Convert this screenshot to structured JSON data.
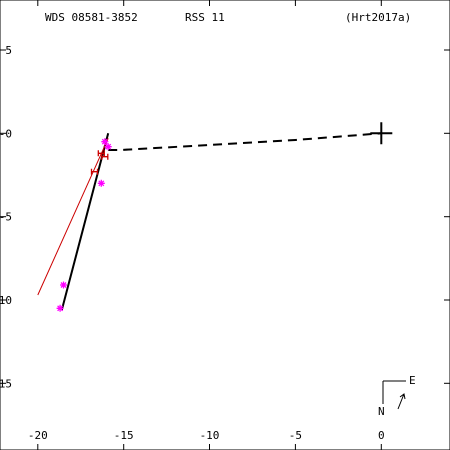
{
  "header": {
    "wds": "WDS 08581-3852",
    "rss": "RSS  11",
    "ref": "(Hrt2017a)"
  },
  "compass": {
    "north": "N",
    "east": "E"
  },
  "colors": {
    "axis": "#000000",
    "orbit": "#000000",
    "reference_fit": "#cc0000",
    "speckle_points": "#ff00ff",
    "ref_markers": "#cc0000"
  },
  "chart_data": {
    "type": "scatter",
    "title": "",
    "xlabel": "",
    "ylabel": "",
    "xlim": [
      -22.2,
      4
    ],
    "ylim": [
      -19,
      8
    ],
    "x_ticks": [
      -20,
      -15,
      -10,
      -5,
      0
    ],
    "y_ticks": [
      5,
      0,
      -5,
      -10,
      -15
    ],
    "x_tick_labels": [
      "-20",
      "-15",
      "-10",
      "-5",
      "0"
    ],
    "y_tick_labels": [
      "5",
      "-0",
      "-5",
      "-10",
      "-15"
    ],
    "primary": {
      "x": 0,
      "y": 0,
      "marker": "plus"
    },
    "series": [
      {
        "kind": "orbit",
        "style": "solid",
        "x": [
          -15.9,
          -18.6
        ],
        "y": [
          0,
          -10.6
        ]
      },
      {
        "kind": "line-of-nodes",
        "style": "dashed",
        "x": [
          -15.9,
          -15.2,
          -10,
          -5,
          0
        ],
        "y": [
          -1,
          -1,
          -0.7,
          -0.4,
          0
        ]
      },
      {
        "kind": "reference-fit",
        "style": "solid",
        "x": [
          -15.9,
          -20.0
        ],
        "y": [
          -0.3,
          -9.7
        ]
      },
      {
        "kind": "speckle-measures",
        "marker": "asterisk",
        "x": [
          -18.5,
          -18.7,
          -16.3,
          -15.9,
          -16.1
        ],
        "y": [
          -9.1,
          -10.5,
          -3.0,
          -0.8,
          -0.5
        ]
      },
      {
        "kind": "other-measures",
        "marker": "H",
        "x": [
          -16.3,
          -16.1,
          -16.7
        ],
        "y": [
          -1.2,
          -1.4,
          -2.3
        ]
      }
    ]
  }
}
